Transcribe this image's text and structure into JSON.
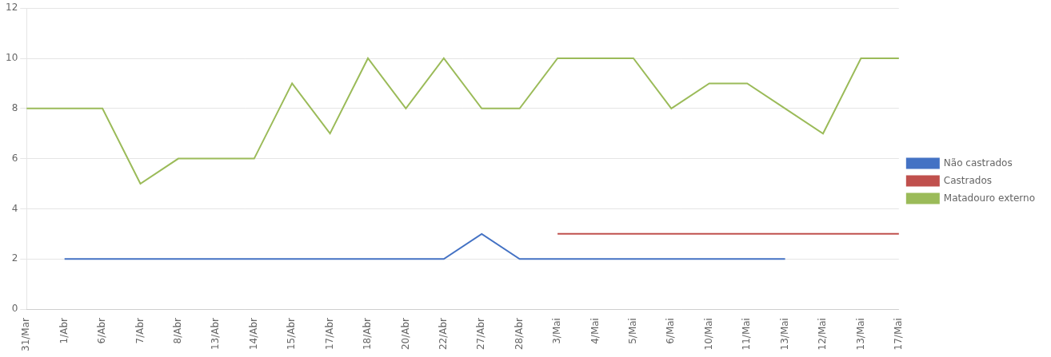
{
  "chart_data": {
    "type": "line",
    "categories": [
      "31/Mar",
      "1/Abr",
      "6/Abr",
      "7/Abr",
      "8/Abr",
      "13/Abr",
      "14/Abr",
      "15/Abr",
      "17/Abr",
      "18/Abr",
      "20/Abr",
      "22/Abr",
      "27/Abr",
      "28/Abr",
      "3/Mai",
      "4/Mai",
      "5/Mai",
      "6/Mai",
      "10/Mai",
      "11/Mai",
      "13/Mai",
      "12/Mai",
      "13/Mai",
      "17/Mai"
    ],
    "series": [
      {
        "name": "Não castrados",
        "color": "#4472C4",
        "values": [
          null,
          2,
          2,
          2,
          2,
          2,
          2,
          2,
          2,
          2,
          2,
          2,
          3,
          2,
          2,
          2,
          2,
          2,
          2,
          2,
          2,
          null,
          null,
          null
        ]
      },
      {
        "name": "Castrados",
        "color": "#C0504D",
        "values": [
          null,
          null,
          null,
          null,
          null,
          null,
          null,
          null,
          null,
          null,
          null,
          null,
          null,
          null,
          3,
          3,
          3,
          3,
          3,
          3,
          3,
          3,
          3,
          3
        ]
      },
      {
        "name": "Matadouro externo",
        "color": "#9BBB59",
        "values": [
          8,
          8,
          8,
          5,
          6,
          6,
          6,
          9,
          7,
          10,
          8,
          10,
          8,
          8,
          10,
          10,
          10,
          8,
          9,
          9,
          8,
          7,
          10,
          10
        ]
      }
    ],
    "ylim": [
      0,
      12
    ],
    "yticks": [
      0,
      2,
      4,
      6,
      8,
      10,
      12
    ],
    "grid": true,
    "legend": "right"
  }
}
